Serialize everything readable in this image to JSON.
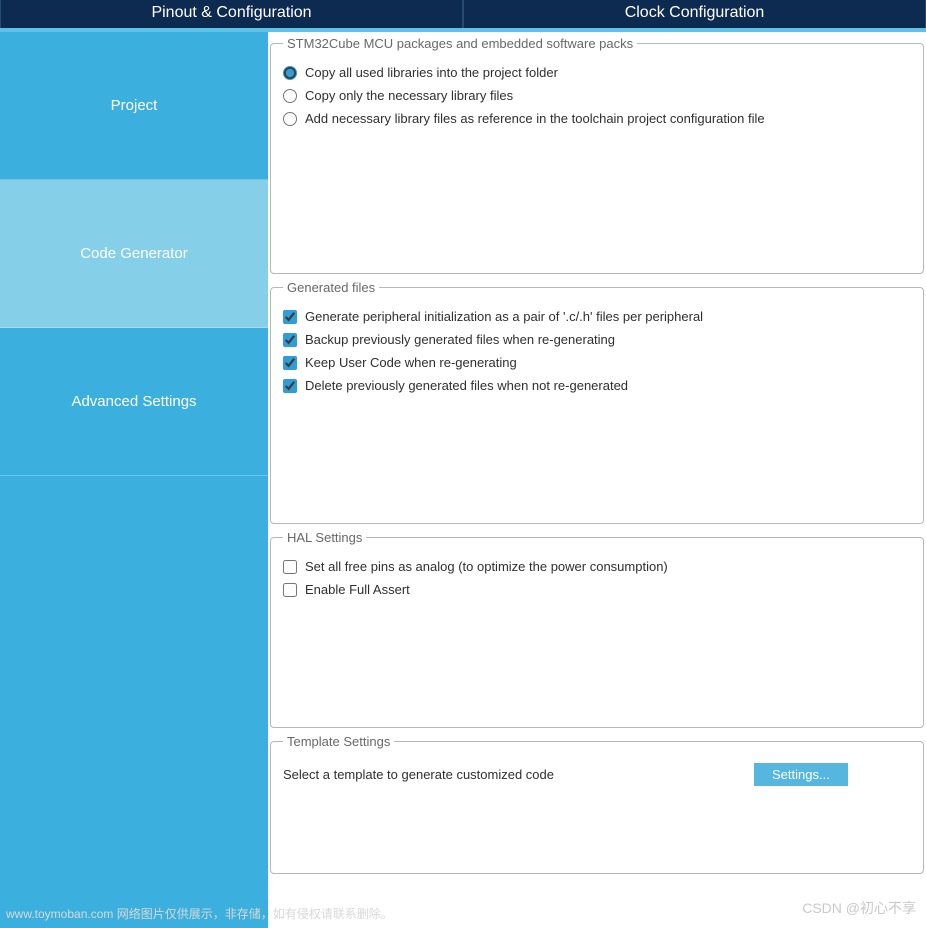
{
  "colors": {
    "topbar_bg": "#0d2a50",
    "accent": "#3bb0de",
    "accent_light": "#86cfe9",
    "underline": "#5ec2e8",
    "fieldset_border": "#b7b7b7",
    "legend_text": "#686868",
    "body_text": "#2f2f2f",
    "button_bg": "#55b6e0",
    "watermark": "#c9c9c9"
  },
  "top_tabs": {
    "pinout": "Pinout & Configuration",
    "clock": "Clock Configuration"
  },
  "sidebar": {
    "project": "Project",
    "code_generator": "Code Generator",
    "advanced_settings": "Advanced Settings",
    "active_index": 1
  },
  "packages": {
    "legend": "STM32Cube MCU packages and embedded software packs",
    "selected": 0,
    "options": [
      "Copy all used libraries into the project folder",
      "Copy only the necessary library files",
      "Add necessary library files as reference in the toolchain project configuration file"
    ]
  },
  "generated_files": {
    "legend": "Generated files",
    "items": [
      {
        "label": "Generate peripheral initialization as a pair of '.c/.h' files per peripheral",
        "checked": true
      },
      {
        "label": "Backup previously generated files when re-generating",
        "checked": true
      },
      {
        "label": "Keep User Code when re-generating",
        "checked": true
      },
      {
        "label": "Delete previously generated files when not re-generated",
        "checked": true
      }
    ]
  },
  "hal_settings": {
    "legend": "HAL Settings",
    "items": [
      {
        "label": "Set all free pins as analog (to optimize the power consumption)",
        "checked": false
      },
      {
        "label": "Enable Full Assert",
        "checked": false
      }
    ]
  },
  "template_settings": {
    "legend": "Template Settings",
    "text": "Select a template to generate customized code",
    "button": "Settings..."
  },
  "watermark_left": "www.toymoban.com 网络图片仅供展示，非存储，如有侵权请联系删除。",
  "watermark_right": "CSDN @初心不享"
}
